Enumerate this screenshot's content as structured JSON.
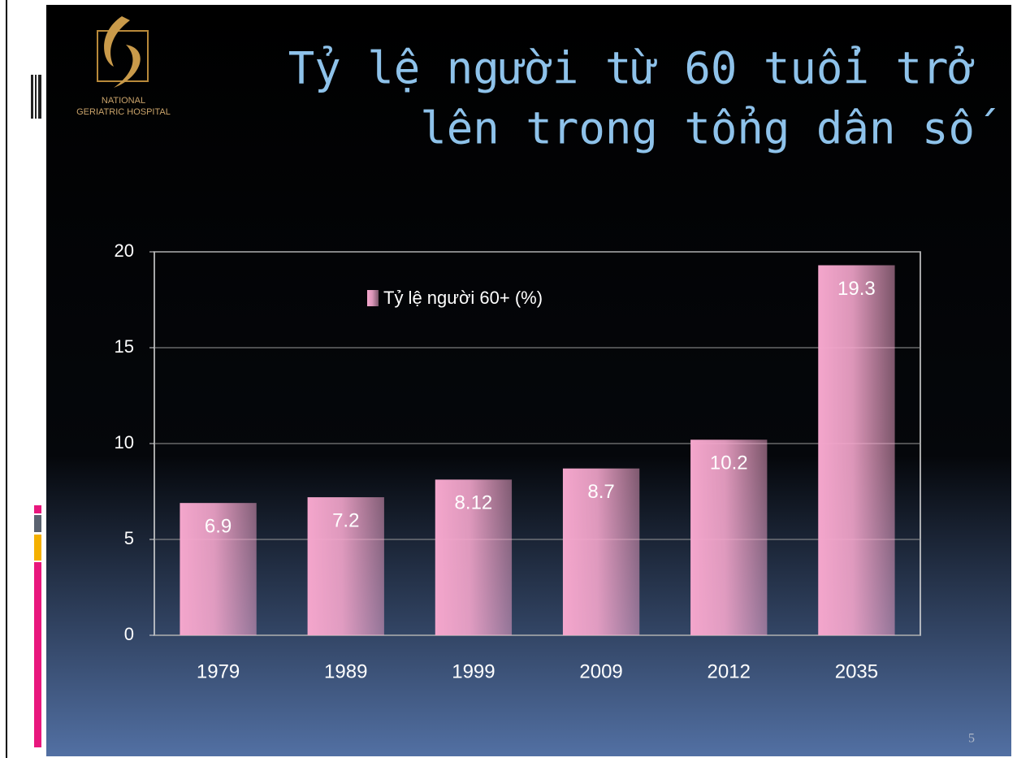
{
  "logo": {
    "line1": "NATIONAL",
    "line2": "GERIATRIC HOSPITAL"
  },
  "slide_title": [
    "Tỷ lệ người từ 60 tuổi trở",
    "lên trong tổng dân số"
  ],
  "page_number": "5",
  "chart_data": {
    "type": "bar",
    "categories": [
      "1979",
      "1989",
      "1999",
      "2009",
      "2012",
      "2035"
    ],
    "series": [
      {
        "name": "Tỷ lệ người 60+ (%)",
        "color": "#f4a6cc",
        "values": [
          6.9,
          7.2,
          8.12,
          8.7,
          10.2,
          19.3
        ]
      }
    ],
    "ylim": [
      0,
      20
    ],
    "yticks": [
      0,
      5,
      10,
      15,
      20
    ],
    "grid": true
  }
}
